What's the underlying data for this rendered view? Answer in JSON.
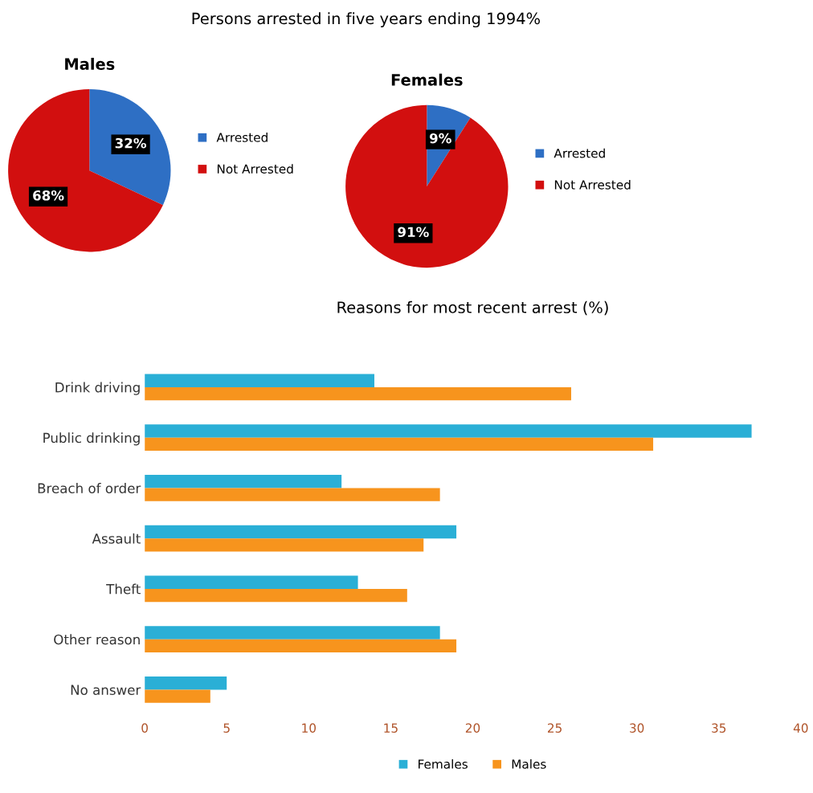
{
  "chart_data": [
    {
      "type": "pie",
      "subtitle": "Males",
      "categories": [
        "Arrested",
        "Not Arrested"
      ],
      "values": [
        32,
        68
      ],
      "colors": [
        "#2e6fc4",
        "#d20f0f"
      ],
      "value_labels": [
        "32%",
        "68%"
      ],
      "legend": "right"
    },
    {
      "type": "pie",
      "title": "Persons arrested in five years ending 1994%",
      "subtitle": "Females",
      "categories": [
        "Arrested",
        "Not Arrested"
      ],
      "values": [
        9,
        91
      ],
      "colors": [
        "#2e6fc4",
        "#d20f0f"
      ],
      "value_labels": [
        "9%",
        "91%"
      ],
      "legend": "right"
    },
    {
      "type": "bar",
      "orientation": "horizontal",
      "title": "Reasons for most recent arrest (%)",
      "categories": [
        "Drink driving",
        "Public drinking",
        "Breach of order",
        "Assault",
        "Theft",
        "Other reason",
        "No answer"
      ],
      "series": [
        {
          "name": "Females",
          "color": "#2aafd6",
          "values": [
            14,
            37,
            12,
            19,
            13,
            18,
            5
          ]
        },
        {
          "name": "Males",
          "color": "#f7941d",
          "values": [
            26,
            31,
            18,
            17,
            16,
            19,
            4
          ]
        }
      ],
      "xlim": [
        0,
        40
      ],
      "xticks": [
        0,
        5,
        10,
        15,
        20,
        25,
        30,
        35,
        40
      ],
      "legend": "bottom",
      "grid": false
    }
  ]
}
